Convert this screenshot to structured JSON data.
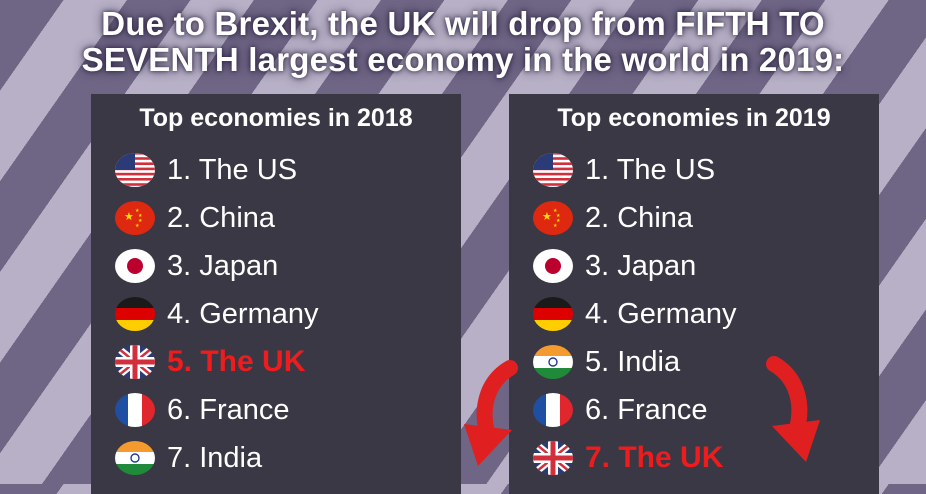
{
  "headline": {
    "line1": "Due to Brexit, the UK will drop from FIFTH TO",
    "line2": "SEVENTH largest economy in the world in 2019:"
  },
  "colors": {
    "highlight": "#ee1c1c",
    "panel": "#3a3845",
    "arrow": "#e02020"
  },
  "panels": [
    {
      "title": "Top economies in 2018",
      "items": [
        {
          "label": "1. The US",
          "flag": "us-flag-icon",
          "highlight": false
        },
        {
          "label": "2. China",
          "flag": "china-flag-icon",
          "highlight": false
        },
        {
          "label": "3. Japan",
          "flag": "japan-flag-icon",
          "highlight": false
        },
        {
          "label": "4. Germany",
          "flag": "germany-flag-icon",
          "highlight": false
        },
        {
          "label": "5. The UK",
          "flag": "uk-flag-icon",
          "highlight": true
        },
        {
          "label": "6. France",
          "flag": "france-flag-icon",
          "highlight": false
        },
        {
          "label": "7. India",
          "flag": "india-flag-icon",
          "highlight": false
        }
      ]
    },
    {
      "title": "Top economies in 2019",
      "items": [
        {
          "label": "1. The US",
          "flag": "us-flag-icon",
          "highlight": false
        },
        {
          "label": "2. China",
          "flag": "china-flag-icon",
          "highlight": false
        },
        {
          "label": "3. Japan",
          "flag": "japan-flag-icon",
          "highlight": false
        },
        {
          "label": "4. Germany",
          "flag": "germany-flag-icon",
          "highlight": false
        },
        {
          "label": "5. India",
          "flag": "india-flag-icon",
          "highlight": false
        },
        {
          "label": "6. France",
          "flag": "france-flag-icon",
          "highlight": false
        },
        {
          "label": "7. The UK",
          "flag": "uk-flag-icon",
          "highlight": true
        }
      ]
    }
  ]
}
